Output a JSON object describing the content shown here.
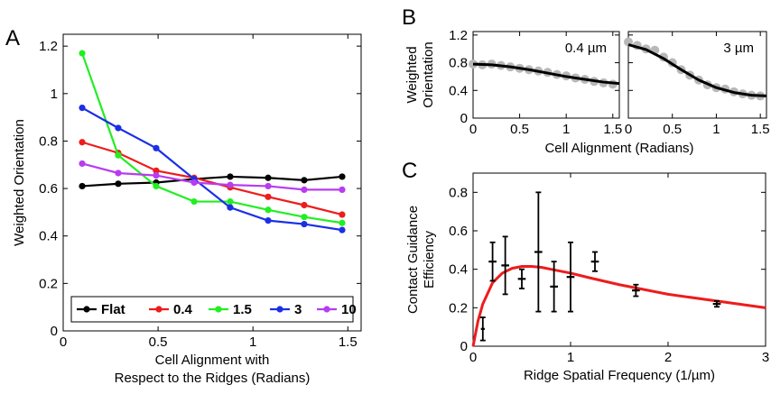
{
  "chart_data": [
    {
      "panel": "A",
      "type": "line",
      "xlabel": [
        "Cell Alignment with",
        "Respect to the Ridges (Radians)"
      ],
      "ylabel": "Weighted Orientation",
      "xlim": [
        0,
        1.57
      ],
      "ylim": [
        0,
        1.25
      ],
      "xticks": [
        "0",
        "0.5",
        "1",
        "1.5"
      ],
      "yticks": [
        "0",
        "0.2",
        "0.4",
        "0.6",
        "0.8",
        "1",
        "1.2"
      ],
      "legend": "bottom",
      "x": [
        0.1,
        0.29,
        0.49,
        0.69,
        0.88,
        1.08,
        1.27,
        1.47
      ],
      "series": [
        {
          "name": "Flat",
          "color": "#000000",
          "values": [
            0.61,
            0.62,
            0.625,
            0.64,
            0.65,
            0.645,
            0.635,
            0.65
          ]
        },
        {
          "name": "0.4",
          "color": "#ee1c1c",
          "values": [
            0.795,
            0.75,
            0.675,
            0.645,
            0.605,
            0.565,
            0.53,
            0.49
          ]
        },
        {
          "name": "1.5",
          "color": "#22ee22",
          "values": [
            1.17,
            0.74,
            0.61,
            0.545,
            0.545,
            0.51,
            0.48,
            0.455
          ]
        },
        {
          "name": "3",
          "color": "#1a2fe6",
          "values": [
            0.94,
            0.855,
            0.77,
            0.64,
            0.52,
            0.465,
            0.45,
            0.425
          ]
        },
        {
          "name": "10",
          "color": "#b83cf0",
          "values": [
            0.705,
            0.665,
            0.655,
            0.625,
            0.615,
            0.61,
            0.595,
            0.595
          ]
        }
      ]
    },
    {
      "panel": "B",
      "type": "scatter",
      "ylabel": "Weighted Orientation",
      "xlabel": "Cell Alignment (Radians)",
      "xlim": [
        0,
        1.57
      ],
      "ylim": [
        0,
        1.25
      ],
      "xticks": [
        "0",
        "0.5",
        "1",
        "1.5"
      ],
      "yticks": [
        "0",
        "0.4",
        "0.8",
        "1.2"
      ],
      "subplots": [
        {
          "label": "0.4 µm",
          "points_x": [
            0.0,
            0.1,
            0.2,
            0.3,
            0.4,
            0.5,
            0.6,
            0.7,
            0.8,
            0.9,
            1.0,
            1.1,
            1.2,
            1.3,
            1.4,
            1.5
          ],
          "points_y": [
            0.78,
            0.77,
            0.78,
            0.76,
            0.74,
            0.72,
            0.7,
            0.68,
            0.66,
            0.63,
            0.61,
            0.58,
            0.56,
            0.53,
            0.51,
            0.49
          ],
          "fit_x": [
            0,
            0.2,
            0.4,
            0.6,
            0.8,
            1.0,
            1.2,
            1.4,
            1.57
          ],
          "fit_y": [
            0.78,
            0.77,
            0.74,
            0.7,
            0.65,
            0.6,
            0.56,
            0.52,
            0.5
          ]
        },
        {
          "label": "3 µm",
          "points_x": [
            0.0,
            0.1,
            0.2,
            0.3,
            0.4,
            0.5,
            0.6,
            0.7,
            0.8,
            0.9,
            1.0,
            1.1,
            1.2,
            1.3,
            1.4,
            1.5
          ],
          "points_y": [
            1.1,
            1.05,
            1.0,
            0.98,
            0.88,
            0.8,
            0.7,
            0.62,
            0.55,
            0.48,
            0.44,
            0.42,
            0.38,
            0.35,
            0.33,
            0.32
          ],
          "fit_x": [
            0,
            0.2,
            0.4,
            0.6,
            0.8,
            1.0,
            1.2,
            1.4,
            1.57
          ],
          "fit_y": [
            1.06,
            0.99,
            0.86,
            0.7,
            0.55,
            0.44,
            0.37,
            0.33,
            0.32
          ]
        }
      ]
    },
    {
      "panel": "C",
      "type": "scatter",
      "xlabel": "Ridge Spatial Frequency (1/µm)",
      "ylabel": [
        "Contact Guidance",
        "Efficiency"
      ],
      "xlim": [
        0,
        3
      ],
      "ylim": [
        0,
        0.9
      ],
      "xticks": [
        "0",
        "1",
        "2",
        "3"
      ],
      "yticks": [
        "0",
        "0.2",
        "0.4",
        "0.6",
        "0.8"
      ],
      "points": [
        {
          "x": 0.1,
          "y": 0.09,
          "yerr": 0.06,
          "xerr": 0.02
        },
        {
          "x": 0.2,
          "y": 0.44,
          "yerr": 0.1,
          "xerr": 0.04
        },
        {
          "x": 0.33,
          "y": 0.42,
          "yerr": 0.15,
          "xerr": 0.04
        },
        {
          "x": 0.5,
          "y": 0.35,
          "yerr": 0.05,
          "xerr": 0.04
        },
        {
          "x": 0.67,
          "y": 0.49,
          "yerr": 0.31,
          "xerr": 0.04
        },
        {
          "x": 0.83,
          "y": 0.31,
          "yerr": 0.13,
          "xerr": 0.04
        },
        {
          "x": 1.0,
          "y": 0.36,
          "yerr": 0.18,
          "xerr": 0.04
        },
        {
          "x": 1.25,
          "y": 0.44,
          "yerr": 0.05,
          "xerr": 0.04
        },
        {
          "x": 1.67,
          "y": 0.29,
          "yerr": 0.03,
          "xerr": 0.04
        },
        {
          "x": 2.5,
          "y": 0.22,
          "yerr": 0.015,
          "xerr": 0.04
        }
      ],
      "fit_color": "#ee1c1c",
      "fit_x": [
        0,
        0.05,
        0.1,
        0.2,
        0.3,
        0.4,
        0.5,
        0.6,
        0.7,
        0.8,
        1.0,
        1.2,
        1.5,
        1.8,
        2.0,
        2.5,
        3.0
      ],
      "fit_y": [
        0,
        0.13,
        0.22,
        0.33,
        0.38,
        0.405,
        0.415,
        0.415,
        0.41,
        0.4,
        0.38,
        0.355,
        0.32,
        0.29,
        0.27,
        0.235,
        0.2
      ]
    }
  ],
  "panel_labels": {
    "a": "A",
    "b": "B",
    "c": "C"
  }
}
